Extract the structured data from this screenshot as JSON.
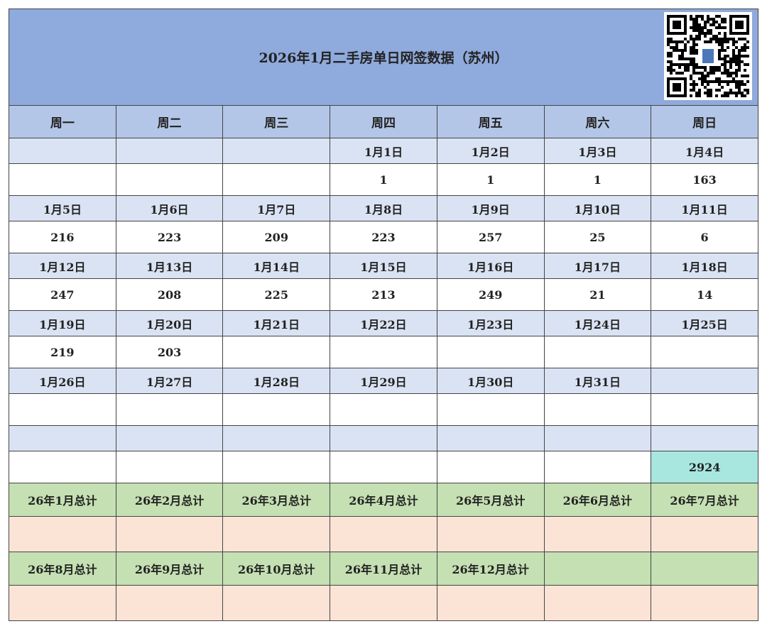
{
  "title": "2026年1月二手房单日网签数据（苏州）",
  "weekdays": [
    "周一",
    "周二",
    "周三",
    "周四",
    "周五",
    "周六",
    "周日"
  ],
  "weeks": [
    {
      "dates": [
        "",
        "",
        "",
        "1月1日",
        "1月2日",
        "1月3日",
        "1月4日"
      ],
      "values": [
        "",
        "",
        "",
        "1",
        "1",
        "1",
        "163"
      ]
    },
    {
      "dates": [
        "1月5日",
        "1月6日",
        "1月7日",
        "1月8日",
        "1月9日",
        "1月10日",
        "1月11日"
      ],
      "values": [
        "216",
        "223",
        "209",
        "223",
        "257",
        "25",
        "6"
      ]
    },
    {
      "dates": [
        "1月12日",
        "1月13日",
        "1月14日",
        "1月15日",
        "1月16日",
        "1月17日",
        "1月18日"
      ],
      "values": [
        "247",
        "208",
        "225",
        "213",
        "249",
        "21",
        "14"
      ]
    },
    {
      "dates": [
        "1月19日",
        "1月20日",
        "1月21日",
        "1月22日",
        "1月23日",
        "1月24日",
        "1月25日"
      ],
      "values": [
        "219",
        "203",
        "",
        "",
        "",
        "",
        ""
      ]
    },
    {
      "dates": [
        "1月26日",
        "1月27日",
        "1月28日",
        "1月29日",
        "1月30日",
        "1月31日",
        ""
      ],
      "values": [
        "",
        "",
        "",
        "",
        "",
        "",
        ""
      ]
    }
  ],
  "month_total": "2924",
  "totals_row1": [
    "26年1月总计",
    "26年2月总计",
    "26年3月总计",
    "26年4月总计",
    "26年5月总计",
    "26年6月总计",
    "26年7月总计"
  ],
  "totals_row2": [
    "26年8月总计",
    "26年9月总计",
    "26年10月总计",
    "26年11月总计",
    "26年12月总计",
    "",
    ""
  ],
  "colors": {
    "title": "#8faadc",
    "header": "#b4c6e7",
    "date_row": "#dae3f3",
    "totals_label": "#c5e0b3",
    "totals_value": "#fbe4d5",
    "highlight": "#a8e6e0"
  }
}
